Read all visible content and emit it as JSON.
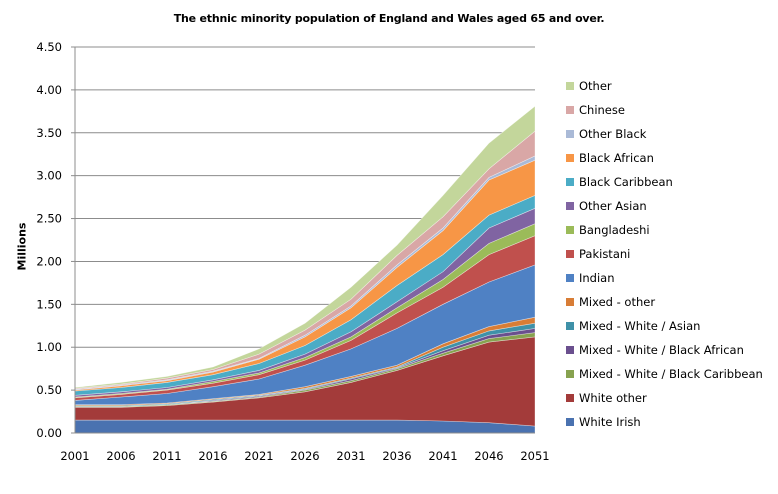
{
  "chart_data": {
    "type": "area",
    "stacked": true,
    "title": "The ethnic minority population of England and Wales aged 65 and over.",
    "xlabel": "",
    "ylabel": "Millions",
    "ylim": [
      0,
      4.5
    ],
    "yticks": [
      "0.00",
      "0.50",
      "1.00",
      "1.50",
      "2.00",
      "2.50",
      "3.00",
      "3.50",
      "4.00",
      "4.50"
    ],
    "ytick_values": [
      0,
      0.5,
      1.0,
      1.5,
      2.0,
      2.5,
      3.0,
      3.5,
      4.0,
      4.5
    ],
    "grid": true,
    "legend_position": "right",
    "categories": [
      "2001",
      "2006",
      "2011",
      "2016",
      "2021",
      "2026",
      "2031",
      "2036",
      "2041",
      "2046",
      "2051"
    ],
    "series": [
      {
        "name": "White Irish",
        "color": "#4a72b0",
        "values": [
          0.15,
          0.15,
          0.15,
          0.15,
          0.15,
          0.15,
          0.15,
          0.15,
          0.14,
          0.12,
          0.08
        ]
      },
      {
        "name": "White other",
        "color": "#a33b3a",
        "values": [
          0.15,
          0.15,
          0.17,
          0.21,
          0.26,
          0.33,
          0.44,
          0.58,
          0.76,
          0.94,
          1.04
        ]
      },
      {
        "name": "Mixed - White / Black Caribbean",
        "color": "#87a24f",
        "values": [
          0.01,
          0.01,
          0.01,
          0.01,
          0.01,
          0.02,
          0.02,
          0.02,
          0.03,
          0.04,
          0.05
        ]
      },
      {
        "name": "Mixed - White / Black African",
        "color": "#6a4f8e",
        "values": [
          0.0,
          0.0,
          0.0,
          0.01,
          0.01,
          0.01,
          0.02,
          0.01,
          0.03,
          0.04,
          0.05
        ]
      },
      {
        "name": "Mixed - White / Asian",
        "color": "#3f91a8",
        "values": [
          0.01,
          0.01,
          0.01,
          0.01,
          0.01,
          0.01,
          0.01,
          0.01,
          0.04,
          0.05,
          0.06
        ]
      },
      {
        "name": "Mixed - other",
        "color": "#d87d36",
        "values": [
          0.01,
          0.01,
          0.01,
          0.01,
          0.01,
          0.02,
          0.02,
          0.02,
          0.04,
          0.05,
          0.07
        ]
      },
      {
        "name": "Indian",
        "color": "#4f81c4",
        "values": [
          0.05,
          0.09,
          0.11,
          0.14,
          0.18,
          0.25,
          0.32,
          0.43,
          0.46,
          0.52,
          0.61
        ]
      },
      {
        "name": "Pakistani",
        "color": "#c0504d",
        "values": [
          0.03,
          0.03,
          0.04,
          0.04,
          0.05,
          0.06,
          0.1,
          0.18,
          0.2,
          0.32,
          0.34
        ]
      },
      {
        "name": "Bangladeshi",
        "color": "#9bbb59",
        "values": [
          0.01,
          0.01,
          0.01,
          0.02,
          0.02,
          0.03,
          0.04,
          0.06,
          0.09,
          0.13,
          0.14
        ]
      },
      {
        "name": "Other Asian",
        "color": "#8064a2",
        "values": [
          0.02,
          0.02,
          0.02,
          0.02,
          0.03,
          0.04,
          0.06,
          0.07,
          0.09,
          0.18,
          0.18
        ]
      },
      {
        "name": "Black Caribbean",
        "color": "#4bacc6",
        "values": [
          0.05,
          0.05,
          0.06,
          0.06,
          0.08,
          0.1,
          0.14,
          0.19,
          0.2,
          0.15,
          0.15
        ]
      },
      {
        "name": "Black African",
        "color": "#f79646",
        "values": [
          0.01,
          0.02,
          0.02,
          0.03,
          0.05,
          0.1,
          0.14,
          0.21,
          0.28,
          0.41,
          0.41
        ]
      },
      {
        "name": "Other Black",
        "color": "#aabad7",
        "values": [
          0.01,
          0.01,
          0.01,
          0.01,
          0.01,
          0.02,
          0.02,
          0.03,
          0.03,
          0.03,
          0.05
        ]
      },
      {
        "name": "Chinese",
        "color": "#d9a7a6",
        "values": [
          0.01,
          0.01,
          0.02,
          0.02,
          0.05,
          0.06,
          0.08,
          0.11,
          0.13,
          0.1,
          0.29
        ]
      },
      {
        "name": "Other",
        "color": "#c3d69b",
        "values": [
          0.01,
          0.02,
          0.02,
          0.03,
          0.06,
          0.08,
          0.14,
          0.12,
          0.25,
          0.3,
          0.29
        ]
      }
    ],
    "legend_order": [
      "Other",
      "Chinese",
      "Other Black",
      "Black African",
      "Black Caribbean",
      "Other Asian",
      "Bangladeshi",
      "Pakistani",
      "Indian",
      "Mixed - other",
      "Mixed - White / Asian",
      "Mixed - White / Black African",
      "Mixed - White / Black Caribbean",
      "White other",
      "White Irish"
    ]
  }
}
